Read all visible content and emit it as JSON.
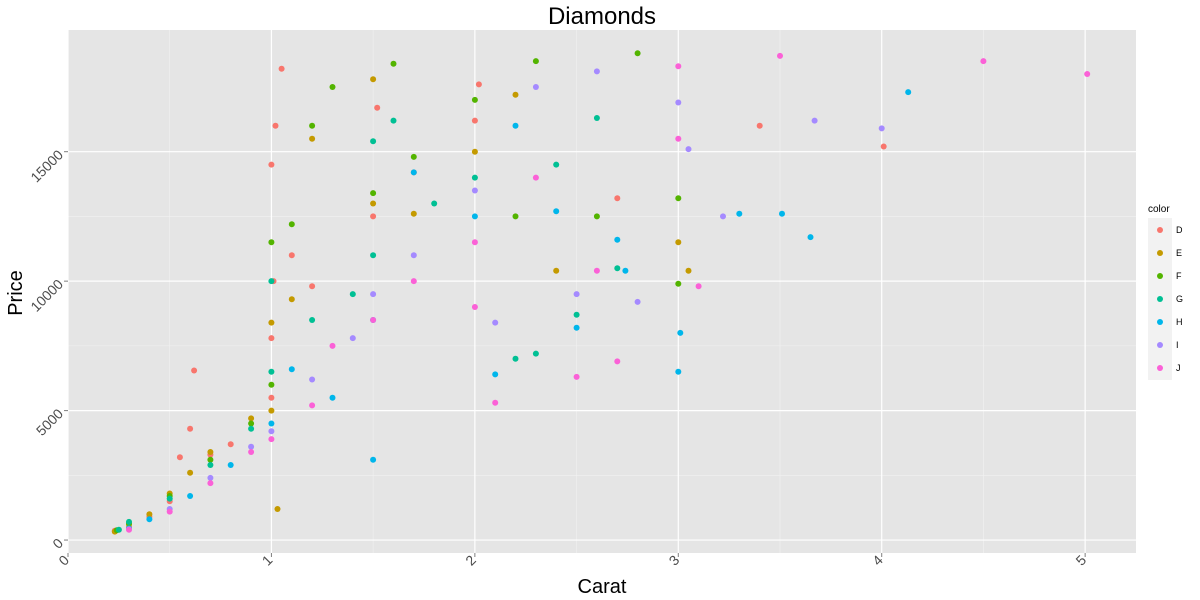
{
  "chart_data": {
    "type": "scatter",
    "title": "Diamonds",
    "xlabel": "Carat",
    "ylabel": "Price",
    "xlim": [
      0,
      5.25
    ],
    "ylim": [
      -500,
      19700
    ],
    "x_ticks": [
      0,
      1,
      2,
      3,
      4,
      5
    ],
    "y_ticks": [
      0,
      5000,
      10000,
      15000
    ],
    "y_tick_labels": [
      "0",
      "5000",
      "10000",
      "15000"
    ],
    "grid": true,
    "legend": {
      "title": "color",
      "position": "right",
      "entries": [
        "D",
        "E",
        "F",
        "G",
        "H",
        "I",
        "J"
      ]
    },
    "colors": {
      "D": "#F8766D",
      "E": "#C49A00",
      "F": "#53B400",
      "G": "#00C094",
      "H": "#00B6EB",
      "I": "#A58AFF",
      "J": "#FB61D7"
    },
    "panel_background": "#e5e5e5",
    "series": [
      {
        "name": "D",
        "points": [
          [
            0.23,
            357
          ],
          [
            0.3,
            500
          ],
          [
            0.4,
            900
          ],
          [
            0.5,
            1500
          ],
          [
            0.55,
            3200
          ],
          [
            0.6,
            4300
          ],
          [
            0.62,
            6550
          ],
          [
            0.7,
            3300
          ],
          [
            0.8,
            3700
          ],
          [
            1.0,
            5500
          ],
          [
            1.0,
            7800
          ],
          [
            1.01,
            10000
          ],
          [
            1.0,
            14500
          ],
          [
            1.02,
            16000
          ],
          [
            1.05,
            18200
          ],
          [
            1.1,
            11000
          ],
          [
            1.2,
            9800
          ],
          [
            1.5,
            12500
          ],
          [
            1.52,
            16700
          ],
          [
            1.7,
            14200
          ],
          [
            2.0,
            16200
          ],
          [
            2.02,
            17600
          ],
          [
            2.7,
            13200
          ],
          [
            3.4,
            16000
          ],
          [
            4.01,
            15200
          ]
        ]
      },
      {
        "name": "E",
        "points": [
          [
            0.23,
            326
          ],
          [
            0.3,
            600
          ],
          [
            0.4,
            1000
          ],
          [
            0.5,
            1800
          ],
          [
            0.6,
            2600
          ],
          [
            0.7,
            3400
          ],
          [
            0.9,
            4700
          ],
          [
            1.0,
            5000
          ],
          [
            1.0,
            8400
          ],
          [
            1.03,
            1200
          ],
          [
            1.1,
            9300
          ],
          [
            1.2,
            15500
          ],
          [
            1.5,
            17800
          ],
          [
            1.5,
            13000
          ],
          [
            1.7,
            12600
          ],
          [
            2.0,
            15000
          ],
          [
            2.2,
            17200
          ],
          [
            2.4,
            10400
          ],
          [
            3.0,
            11500
          ],
          [
            3.05,
            10400
          ]
        ]
      },
      {
        "name": "F",
        "points": [
          [
            0.24,
            380
          ],
          [
            0.3,
            650
          ],
          [
            0.5,
            1700
          ],
          [
            0.7,
            3100
          ],
          [
            0.9,
            4500
          ],
          [
            1.0,
            6000
          ],
          [
            1.0,
            11500
          ],
          [
            1.1,
            12200
          ],
          [
            1.2,
            16000
          ],
          [
            1.3,
            17500
          ],
          [
            1.5,
            13400
          ],
          [
            1.6,
            18400
          ],
          [
            1.7,
            14800
          ],
          [
            2.0,
            17000
          ],
          [
            2.2,
            12500
          ],
          [
            2.3,
            18500
          ],
          [
            2.6,
            12500
          ],
          [
            2.8,
            18800
          ],
          [
            3.0,
            13200
          ],
          [
            3.0,
            9900
          ]
        ]
      },
      {
        "name": "G",
        "points": [
          [
            0.25,
            400
          ],
          [
            0.3,
            700
          ],
          [
            0.5,
            1600
          ],
          [
            0.7,
            2900
          ],
          [
            0.9,
            4300
          ],
          [
            1.0,
            6500
          ],
          [
            1.0,
            10000
          ],
          [
            1.2,
            8500
          ],
          [
            1.4,
            9500
          ],
          [
            1.5,
            11000
          ],
          [
            1.5,
            15400
          ],
          [
            1.6,
            16200
          ],
          [
            1.8,
            13000
          ],
          [
            2.0,
            14000
          ],
          [
            2.2,
            7000
          ],
          [
            2.3,
            7200
          ],
          [
            2.4,
            14500
          ],
          [
            2.5,
            8700
          ],
          [
            2.6,
            16300
          ],
          [
            2.7,
            10500
          ]
        ]
      },
      {
        "name": "H",
        "points": [
          [
            0.3,
            450
          ],
          [
            0.4,
            800
          ],
          [
            0.6,
            1700
          ],
          [
            0.8,
            2900
          ],
          [
            1.0,
            4500
          ],
          [
            1.1,
            6600
          ],
          [
            1.3,
            5500
          ],
          [
            1.5,
            3100
          ],
          [
            1.5,
            8500
          ],
          [
            1.7,
            14200
          ],
          [
            2.0,
            12500
          ],
          [
            2.1,
            6400
          ],
          [
            2.2,
            16000
          ],
          [
            2.4,
            12700
          ],
          [
            2.5,
            8200
          ],
          [
            2.7,
            11600
          ],
          [
            2.74,
            10400
          ],
          [
            3.0,
            6500
          ],
          [
            3.01,
            8000
          ],
          [
            3.3,
            12600
          ],
          [
            3.51,
            12600
          ],
          [
            3.65,
            11700
          ],
          [
            4.13,
            17300
          ]
        ]
      },
      {
        "name": "I",
        "points": [
          [
            0.3,
            420
          ],
          [
            0.5,
            1200
          ],
          [
            0.7,
            2400
          ],
          [
            0.9,
            3600
          ],
          [
            1.0,
            4200
          ],
          [
            1.2,
            6200
          ],
          [
            1.4,
            7800
          ],
          [
            1.5,
            9500
          ],
          [
            1.7,
            11000
          ],
          [
            2.0,
            13500
          ],
          [
            2.1,
            8400
          ],
          [
            2.3,
            17500
          ],
          [
            2.5,
            9500
          ],
          [
            2.6,
            18100
          ],
          [
            2.8,
            9200
          ],
          [
            3.0,
            16900
          ],
          [
            3.05,
            15100
          ],
          [
            3.22,
            12500
          ],
          [
            3.67,
            16200
          ],
          [
            4.0,
            15900
          ]
        ]
      },
      {
        "name": "J",
        "points": [
          [
            0.3,
            400
          ],
          [
            0.5,
            1100
          ],
          [
            0.7,
            2200
          ],
          [
            0.9,
            3400
          ],
          [
            1.0,
            3900
          ],
          [
            1.2,
            5200
          ],
          [
            1.3,
            7500
          ],
          [
            1.5,
            8500
          ],
          [
            1.7,
            10000
          ],
          [
            2.0,
            9000
          ],
          [
            2.0,
            11500
          ],
          [
            2.1,
            5300
          ],
          [
            2.3,
            14000
          ],
          [
            2.5,
            6300
          ],
          [
            2.6,
            10400
          ],
          [
            2.7,
            6900
          ],
          [
            3.0,
            18300
          ],
          [
            3.0,
            15500
          ],
          [
            3.1,
            9800
          ],
          [
            3.5,
            18700
          ],
          [
            4.5,
            18500
          ],
          [
            5.01,
            18000
          ]
        ]
      }
    ]
  }
}
